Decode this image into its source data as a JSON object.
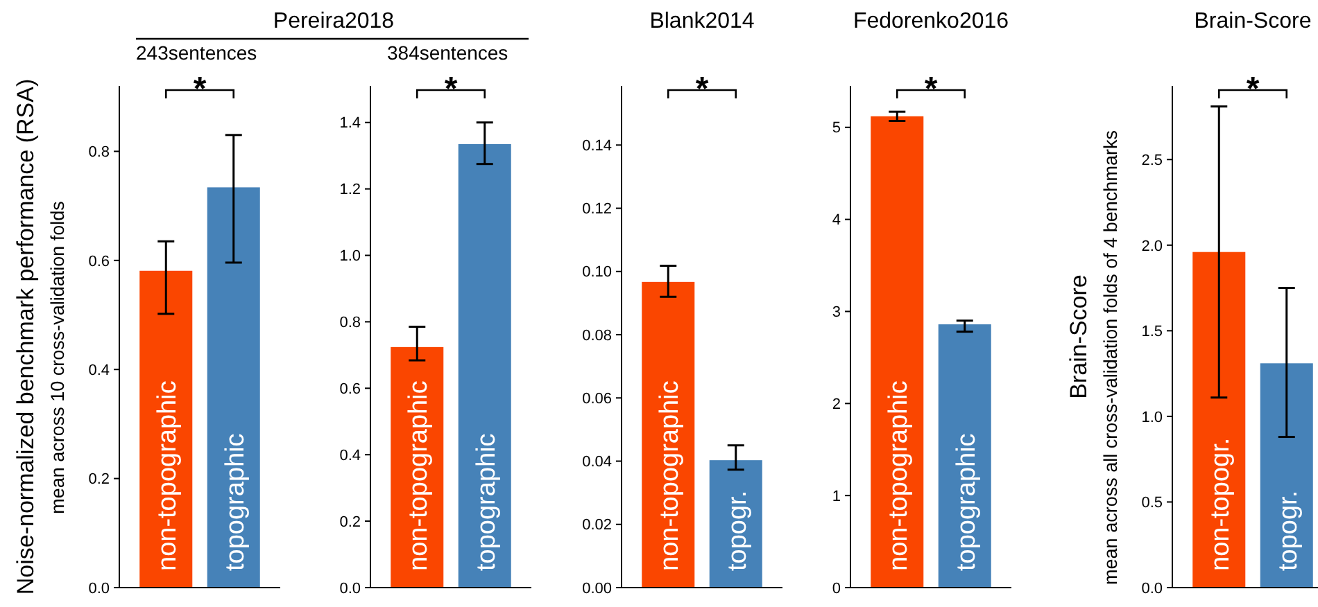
{
  "chart_data": [
    {
      "type": "bar",
      "title": "Pereira2018",
      "subtitle": "243sentences",
      "ylabel": "Noise-normalized benchmark performance (RSA)\nmean across 10 cross-validation folds",
      "categories": [
        "non-topographic",
        "topographic"
      ],
      "values": [
        0.581,
        0.734
      ],
      "colors": [
        "#fa4600",
        "#4682b8"
      ],
      "errors": [
        [
          0.502,
          0.635
        ],
        [
          0.596,
          0.83
        ]
      ],
      "ylim": [
        0,
        0.92
      ],
      "yticks": [
        {
          "value": 0,
          "label": "0.0"
        },
        {
          "value": 0.2,
          "label": "0.2"
        },
        {
          "value": 0.4,
          "label": "0.4"
        },
        {
          "value": 0.6,
          "label": "0.6"
        },
        {
          "value": 0.8,
          "label": "0.8"
        }
      ],
      "annotations": [
        "*"
      ]
    },
    {
      "type": "bar",
      "subtitle": "384sentences",
      "categories": [
        "non-topographic",
        "topographic"
      ],
      "values": [
        0.724,
        1.335
      ],
      "colors": [
        "#fa4600",
        "#4682b8"
      ],
      "errors": [
        [
          0.684,
          0.785
        ],
        [
          1.275,
          1.4
        ]
      ],
      "ylim": [
        0,
        1.51
      ],
      "yticks": [
        {
          "value": 0,
          "label": "0.0"
        },
        {
          "value": 0.2,
          "label": "0.2"
        },
        {
          "value": 0.4,
          "label": "0.4"
        },
        {
          "value": 0.6,
          "label": "0.6"
        },
        {
          "value": 0.8,
          "label": "0.8"
        },
        {
          "value": 1,
          "label": "1.0"
        },
        {
          "value": 1.2,
          "label": "1.2"
        },
        {
          "value": 1.4,
          "label": "1.4"
        }
      ],
      "annotations": [
        "*"
      ]
    },
    {
      "type": "bar",
      "title": "Blank2014",
      "categories": [
        "non-topographic",
        "topogr."
      ],
      "values": [
        0.0967,
        0.0403
      ],
      "colors": [
        "#fa4600",
        "#4682b8"
      ],
      "errors": [
        [
          0.092,
          0.1018
        ],
        [
          0.0373,
          0.045
        ]
      ],
      "ylim": [
        0,
        0.1587
      ],
      "yticks": [
        {
          "value": 0,
          "label": "0.00"
        },
        {
          "value": 0.02,
          "label": "0.02"
        },
        {
          "value": 0.04,
          "label": "0.04"
        },
        {
          "value": 0.06,
          "label": "0.06"
        },
        {
          "value": 0.08,
          "label": "0.08"
        },
        {
          "value": 0.1,
          "label": "0.10"
        },
        {
          "value": 0.12,
          "label": "0.12"
        },
        {
          "value": 0.14,
          "label": "0.14"
        }
      ],
      "annotations": [
        "*"
      ]
    },
    {
      "type": "bar",
      "title": "Fedorenko2016",
      "categories": [
        "non-topographic",
        "topographic"
      ],
      "values": [
        5.12,
        2.86
      ],
      "colors": [
        "#fa4600",
        "#4682b8"
      ],
      "errors": [
        [
          5.07,
          5.17
        ],
        [
          2.78,
          2.9
        ]
      ],
      "ylim": [
        0,
        5.45
      ],
      "yticks": [
        0,
        1,
        2,
        3,
        4,
        5
      ],
      "annotations": [
        "*"
      ]
    },
    {
      "type": "bar",
      "title": "Brain-Score",
      "ylabel": "Brain-Score\nmean across all cross-validation folds of 4 benchmarks",
      "categories": [
        "non-topogr.",
        "topogr."
      ],
      "values": [
        1.96,
        1.31
      ],
      "colors": [
        "#fa4600",
        "#4682b8"
      ],
      "errors": [
        [
          1.11,
          2.81
        ],
        [
          0.88,
          1.75
        ]
      ],
      "ylim": [
        0,
        2.93
      ],
      "yticks": [
        {
          "value": 0,
          "label": "0.0"
        },
        {
          "value": 0.5,
          "label": "0.5"
        },
        {
          "value": 1,
          "label": "1.0"
        },
        {
          "value": 1.5,
          "label": "1.5"
        },
        {
          "value": 2,
          "label": "2.0"
        },
        {
          "value": 2.5,
          "label": "2.5"
        }
      ],
      "annotations": [
        "*"
      ]
    }
  ]
}
